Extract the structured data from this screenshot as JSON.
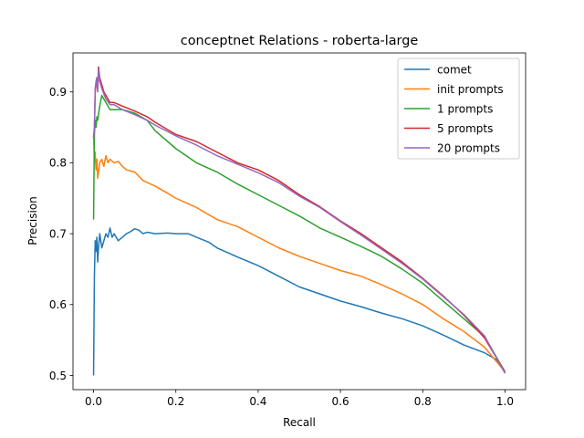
{
  "chart_data": {
    "type": "line",
    "title": "conceptnet Relations - roberta-large",
    "xlabel": "Recall",
    "ylabel": "Precision",
    "xlim": [
      -0.05,
      1.05
    ],
    "ylim": [
      0.48,
      0.955
    ],
    "xticks": [
      0.0,
      0.2,
      0.4,
      0.6,
      0.8,
      1.0
    ],
    "xtick_labels": [
      "0.0",
      "0.2",
      "0.4",
      "0.6",
      "0.8",
      "1.0"
    ],
    "yticks": [
      0.5,
      0.6,
      0.7,
      0.8,
      0.9
    ],
    "ytick_labels": [
      "0.5",
      "0.6",
      "0.7",
      "0.8",
      "0.9"
    ],
    "grid": false,
    "legend_position": "top-right",
    "series": [
      {
        "name": "comet",
        "color": "#1f77b4",
        "x": [
          0.0,
          0.002,
          0.004,
          0.006,
          0.008,
          0.01,
          0.012,
          0.015,
          0.02,
          0.025,
          0.03,
          0.035,
          0.04,
          0.045,
          0.05,
          0.06,
          0.07,
          0.08,
          0.09,
          0.1,
          0.11,
          0.12,
          0.13,
          0.15,
          0.18,
          0.2,
          0.23,
          0.25,
          0.28,
          0.3,
          0.35,
          0.4,
          0.45,
          0.5,
          0.55,
          0.6,
          0.65,
          0.7,
          0.75,
          0.8,
          0.85,
          0.9,
          0.95,
          0.98,
          1.0
        ],
        "y": [
          0.5,
          0.64,
          0.69,
          0.675,
          0.695,
          0.66,
          0.68,
          0.7,
          0.68,
          0.69,
          0.7,
          0.695,
          0.708,
          0.695,
          0.7,
          0.69,
          0.695,
          0.7,
          0.703,
          0.707,
          0.705,
          0.7,
          0.702,
          0.7,
          0.701,
          0.7,
          0.7,
          0.695,
          0.688,
          0.68,
          0.667,
          0.655,
          0.64,
          0.625,
          0.615,
          0.605,
          0.597,
          0.588,
          0.58,
          0.57,
          0.557,
          0.543,
          0.532,
          0.522,
          0.505
        ]
      },
      {
        "name": "init prompts",
        "color": "#ff7f0e",
        "x": [
          0.0,
          0.002,
          0.004,
          0.006,
          0.008,
          0.01,
          0.015,
          0.02,
          0.025,
          0.03,
          0.035,
          0.04,
          0.05,
          0.06,
          0.07,
          0.08,
          0.1,
          0.12,
          0.15,
          0.18,
          0.2,
          0.25,
          0.3,
          0.35,
          0.4,
          0.45,
          0.5,
          0.55,
          0.6,
          0.65,
          0.7,
          0.75,
          0.8,
          0.85,
          0.9,
          0.95,
          1.0
        ],
        "y": [
          0.84,
          0.8,
          0.815,
          0.79,
          0.805,
          0.778,
          0.8,
          0.805,
          0.795,
          0.81,
          0.8,
          0.805,
          0.8,
          0.802,
          0.795,
          0.79,
          0.787,
          0.775,
          0.767,
          0.757,
          0.75,
          0.737,
          0.72,
          0.71,
          0.695,
          0.68,
          0.668,
          0.658,
          0.648,
          0.64,
          0.628,
          0.615,
          0.6,
          0.58,
          0.562,
          0.54,
          0.505
        ]
      },
      {
        "name": "1 prompts",
        "color": "#2ca02c",
        "x": [
          0.0,
          0.002,
          0.004,
          0.006,
          0.008,
          0.01,
          0.015,
          0.02,
          0.025,
          0.03,
          0.04,
          0.05,
          0.07,
          0.1,
          0.13,
          0.15,
          0.2,
          0.25,
          0.3,
          0.35,
          0.4,
          0.45,
          0.5,
          0.55,
          0.6,
          0.65,
          0.7,
          0.75,
          0.8,
          0.85,
          0.9,
          0.95,
          1.0
        ],
        "y": [
          0.72,
          0.84,
          0.86,
          0.85,
          0.865,
          0.86,
          0.88,
          0.895,
          0.89,
          0.885,
          0.875,
          0.875,
          0.875,
          0.87,
          0.86,
          0.845,
          0.82,
          0.8,
          0.787,
          0.77,
          0.755,
          0.74,
          0.725,
          0.708,
          0.695,
          0.682,
          0.668,
          0.65,
          0.63,
          0.605,
          0.58,
          0.555,
          0.505
        ]
      },
      {
        "name": "5 prompts",
        "color": "#d62728",
        "x": [
          0.0,
          0.002,
          0.004,
          0.006,
          0.008,
          0.01,
          0.012,
          0.015,
          0.02,
          0.025,
          0.03,
          0.04,
          0.05,
          0.07,
          0.1,
          0.13,
          0.15,
          0.2,
          0.25,
          0.3,
          0.35,
          0.4,
          0.45,
          0.5,
          0.55,
          0.6,
          0.65,
          0.7,
          0.75,
          0.8,
          0.85,
          0.9,
          0.95,
          1.0
        ],
        "y": [
          0.835,
          0.85,
          0.9,
          0.91,
          0.92,
          0.905,
          0.935,
          0.92,
          0.91,
          0.9,
          0.895,
          0.885,
          0.885,
          0.88,
          0.873,
          0.865,
          0.857,
          0.84,
          0.83,
          0.815,
          0.8,
          0.79,
          0.775,
          0.755,
          0.738,
          0.718,
          0.7,
          0.68,
          0.66,
          0.637,
          0.612,
          0.585,
          0.553,
          0.505
        ]
      },
      {
        "name": "20 prompts",
        "color": "#9467bd",
        "x": [
          0.0,
          0.002,
          0.004,
          0.006,
          0.008,
          0.01,
          0.012,
          0.015,
          0.02,
          0.025,
          0.03,
          0.04,
          0.05,
          0.07,
          0.1,
          0.13,
          0.15,
          0.2,
          0.25,
          0.3,
          0.35,
          0.4,
          0.45,
          0.5,
          0.55,
          0.6,
          0.65,
          0.7,
          0.75,
          0.8,
          0.85,
          0.9,
          0.95,
          1.0
        ],
        "y": [
          0.835,
          0.845,
          0.905,
          0.915,
          0.92,
          0.9,
          0.932,
          0.915,
          0.905,
          0.897,
          0.89,
          0.882,
          0.882,
          0.875,
          0.868,
          0.86,
          0.853,
          0.838,
          0.825,
          0.81,
          0.798,
          0.786,
          0.772,
          0.753,
          0.737,
          0.717,
          0.698,
          0.678,
          0.658,
          0.636,
          0.611,
          0.586,
          0.556,
          0.503
        ]
      }
    ]
  }
}
